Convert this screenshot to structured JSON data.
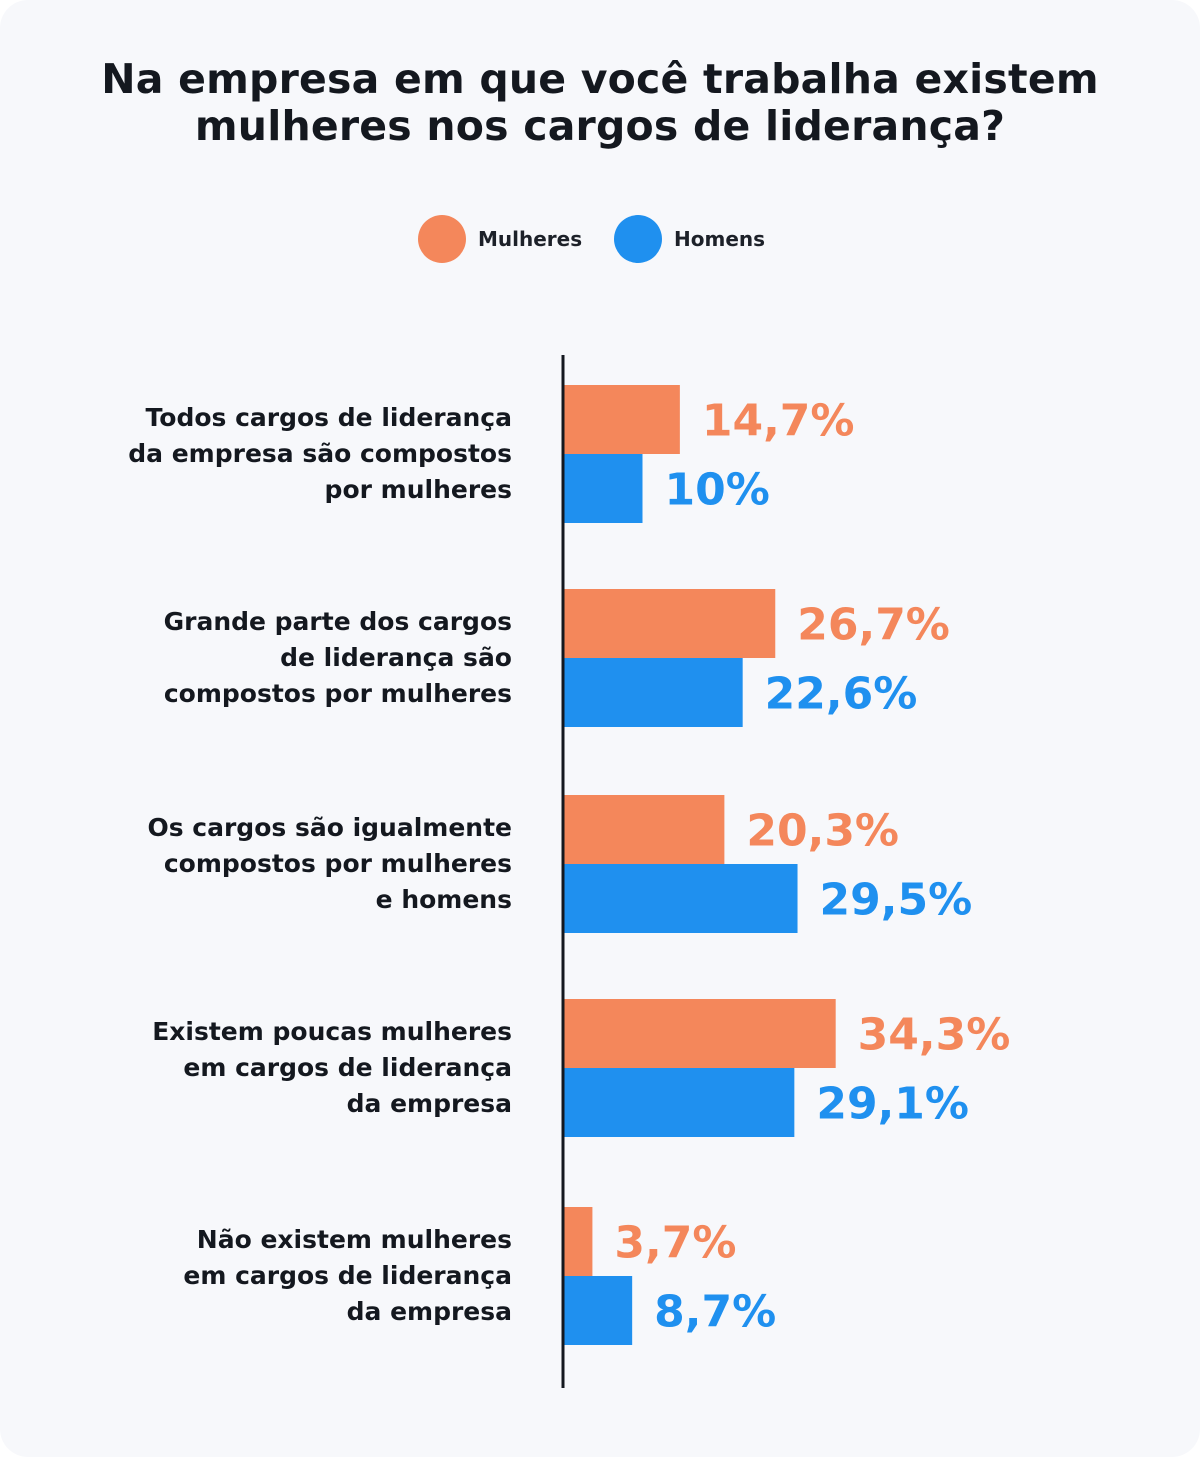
{
  "title_lines": [
    "Na empresa em que você trabalha existem",
    "mulheres nos cargos de liderança?"
  ],
  "legend": [
    {
      "label": "Mulheres",
      "color": "#f4875b"
    },
    {
      "label": "Homens",
      "color": "#1f90ef"
    }
  ],
  "chart_data": {
    "type": "bar",
    "orientation": "horizontal",
    "title": "Na empresa em que você trabalha existem mulheres nos cargos de liderança?",
    "categories": [
      [
        "Todos cargos de liderança",
        "da empresa são compostos",
        "por mulheres"
      ],
      [
        "Grande parte dos cargos",
        "de liderança são",
        "compostos por mulheres"
      ],
      [
        "Os cargos são igualmente",
        "compostos por mulheres",
        "e homens"
      ],
      [
        "Existem poucas mulheres",
        "em cargos de liderança",
        "da empresa"
      ],
      [
        "Não existem mulheres",
        "em cargos de liderança",
        "da empresa"
      ]
    ],
    "series": [
      {
        "name": "Mulheres",
        "color": "#f4875b",
        "values": [
          14.7,
          26.7,
          20.3,
          34.3,
          3.7
        ],
        "labels": [
          "14,7%",
          "26,7%",
          "20,3%",
          "34,3%",
          "3,7%"
        ]
      },
      {
        "name": "Homens",
        "color": "#1f90ef",
        "values": [
          10,
          22.6,
          29.5,
          29.1,
          8.7
        ],
        "labels": [
          "10%",
          "22,6%",
          "29,5%",
          "29,1%",
          "8,7%"
        ]
      }
    ],
    "xlim": [
      0,
      40
    ],
    "grid": false,
    "legend_position": "top-center"
  }
}
